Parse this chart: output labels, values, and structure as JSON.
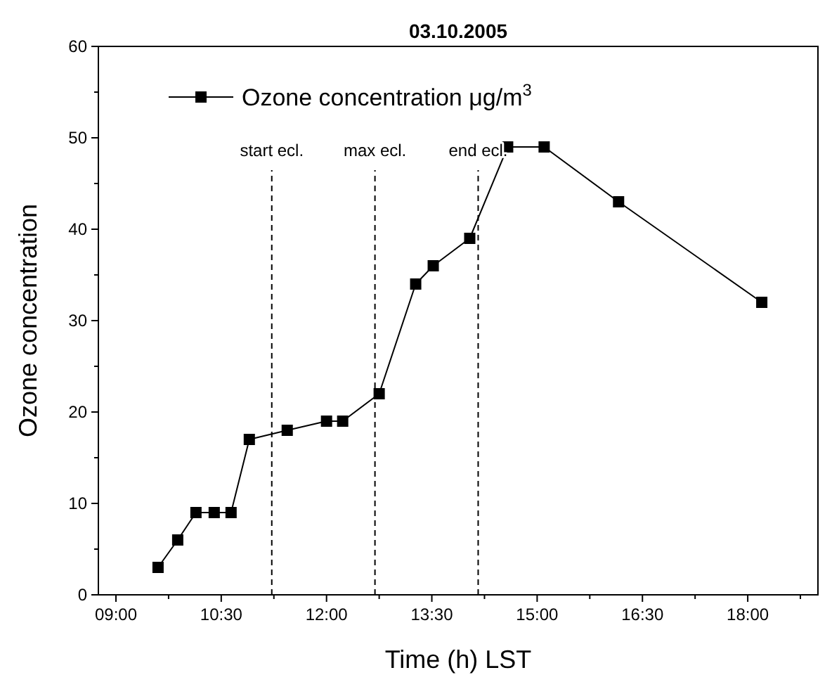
{
  "chart_data": {
    "type": "line",
    "title": "03.10.2005",
    "xlabel": "Time (h) LST",
    "ylabel": "Ozone concentration",
    "series": [
      {
        "name": "Ozone concentration μg/m$^{3}$",
        "color": "#000000",
        "x": [
          9.6,
          9.88,
          10.14,
          10.4,
          10.64,
          10.9,
          11.44,
          12,
          12.23,
          12.75,
          13.27,
          13.52,
          14.04,
          14.58,
          15.1,
          16.16,
          18.2
        ],
        "values": [
          3,
          6,
          9,
          9,
          9,
          17,
          18,
          19,
          19,
          22,
          34,
          36,
          39,
          49,
          49,
          43,
          32
        ]
      }
    ],
    "xlim": [
      8.75,
      19
    ],
    "xticks": [
      {
        "value": 9,
        "label": "09:00"
      },
      {
        "value": 9.75,
        "label": null
      },
      {
        "value": 10.5,
        "label": "10:30"
      },
      {
        "value": 11.25,
        "label": null
      },
      {
        "value": 12,
        "label": "12:00"
      },
      {
        "value": 12.75,
        "label": null
      },
      {
        "value": 13.5,
        "label": "13:30"
      },
      {
        "value": 14.25,
        "label": null
      },
      {
        "value": 15,
        "label": "15:00"
      },
      {
        "value": 15.75,
        "label": null
      },
      {
        "value": 16.5,
        "label": "16:30"
      },
      {
        "value": 17.25,
        "label": null
      },
      {
        "value": 18,
        "label": "18:00"
      },
      {
        "value": 18.75,
        "label": null
      }
    ],
    "ylim": [
      0,
      60
    ],
    "yticks": [
      0,
      {
        "value": 5,
        "label": null
      },
      10,
      {
        "value": 15,
        "label": null
      },
      20,
      {
        "value": 25,
        "label": null
      },
      30,
      {
        "value": 35,
        "label": null
      },
      40,
      {
        "value": 45,
        "label": null
      },
      50,
      {
        "value": 55,
        "label": null
      },
      60
    ],
    "ref_lines": [
      {
        "axis": "x",
        "value": 11.22,
        "label": "start ecl.",
        "line_style": "dashed"
      },
      {
        "axis": "x",
        "value": 12.69,
        "label": "max ecl.",
        "line_style": "dashed"
      },
      {
        "axis": "x",
        "value": 14.16,
        "label": "end ecl.",
        "line_style": "dashed"
      }
    ],
    "marker": "square",
    "line_style": "solid",
    "legend": "top left",
    "grid": false
  }
}
